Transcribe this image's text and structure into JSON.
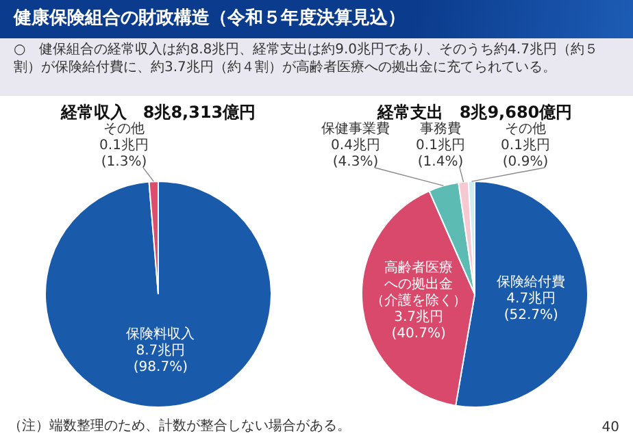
{
  "chart_data": [
    {
      "type": "other",
      "title": "健康保険組合の財政構造（令和５年度決算見込）",
      "annotations": [
        "○　健保組合の経常収入は約8.8兆円、経常支出は約9.0兆円であり、そのうち約4.7兆円（約５割）が保険給付費に、約3.7兆円（約４割）が高齢者医療への拠出金に充てられている。"
      ]
    },
    {
      "type": "pie",
      "title": "経常収入　8兆8,313億円",
      "categories": [
        "保険料収入",
        "その他"
      ],
      "values": [
        98.7,
        1.3
      ],
      "colors": [
        "#1a5aaa",
        "#dd4d6d"
      ],
      "value_labels": [
        "8.7兆円\n(98.7%)",
        "0.1兆円\n(1.3%)"
      ],
      "annotations": [
        "（注）端数整理のため、計数が整合しない場合がある。"
      ]
    },
    {
      "type": "pie",
      "title": "経常支出　8兆9,680億円",
      "categories": [
        "保険給付費",
        "高齢者医療への拠出金（介護を除く）",
        "保健事業費",
        "事務費",
        "その他"
      ],
      "values": [
        52.7,
        40.7,
        4.3,
        1.4,
        0.9
      ],
      "colors": [
        "#1a5aaa",
        "#d9496b",
        "#5cbcb3",
        "#f6c9d2",
        "#cdeeed"
      ],
      "value_labels": [
        "4.7兆円\n(52.7%)",
        "3.7兆円\n(40.7%)",
        "0.4兆円\n(4.3%)",
        "0.1兆円\n(1.4%)",
        "0.1兆円\n(0.9%)"
      ],
      "annotations": [
        "40"
      ]
    }
  ]
}
